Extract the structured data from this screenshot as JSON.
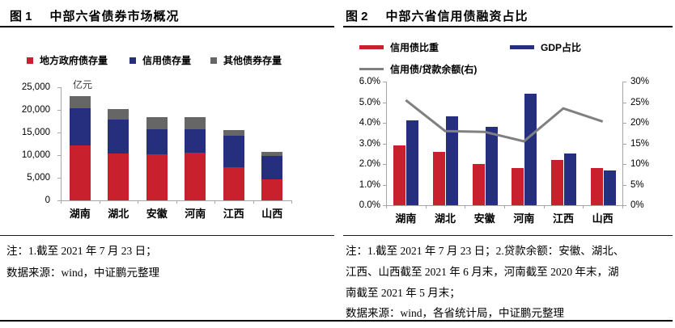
{
  "panels": {
    "left": {
      "fig_no": "图 1",
      "title": "中部六省债券市场概况",
      "unit_label": "亿元",
      "notes": [
        "注：1.截至 2021 年 7 月 23 日；",
        "数据来源：wind，中证鹏元整理"
      ]
    },
    "right": {
      "fig_no": "图 2",
      "title": "中部六省信用债融资占比",
      "notes": [
        "注：1.截至 2021 年 7 月 23 日；2.贷款余额：安徽、湖北、",
        "江西、山西截至 2021 年 6 月末，河南截至 2020 年末，湖",
        "南截至 2021 年 5 月末；",
        "数据来源：wind，各省统计局，中证鹏元整理"
      ]
    }
  },
  "colors": {
    "red": "#C9202E",
    "blue": "#252F7D",
    "gray_bar": "#666666",
    "gray_line": "#808080",
    "axis": "#A6A6A6"
  },
  "chart_data": [
    {
      "type": "bar",
      "stacked": true,
      "title": "中部六省债券市场概况",
      "ylabel": "亿元",
      "categories": [
        "湖南",
        "湖北",
        "安徽",
        "河南",
        "江西",
        "山西"
      ],
      "ylim": [
        0,
        25000
      ],
      "yticks": [
        "25,000",
        "20,000",
        "15,000",
        "10,000",
        "5,000",
        "0"
      ],
      "grid": false,
      "legend_position": "top",
      "series": [
        {
          "name": "地方政府债存量",
          "color": "#C9202E",
          "values": [
            12100,
            10300,
            10100,
            10600,
            7300,
            4600
          ]
        },
        {
          "name": "信用债存量",
          "color": "#252F7D",
          "values": [
            8300,
            7600,
            5600,
            5100,
            6900,
            5300
          ]
        },
        {
          "name": "其他债券存量",
          "color": "#666666",
          "values": [
            2700,
            2300,
            2700,
            2700,
            1300,
            900
          ]
        }
      ]
    },
    {
      "type": "bar+line",
      "title": "中部六省信用债融资占比",
      "categories": [
        "湖南",
        "湖北",
        "安徽",
        "河南",
        "江西",
        "山西"
      ],
      "ylim_left": [
        0,
        6
      ],
      "ylim_right": [
        0,
        30
      ],
      "yticks_left": [
        "6.0%",
        "5.0%",
        "4.0%",
        "3.0%",
        "2.0%",
        "1.0%",
        "0.0%"
      ],
      "yticks_right": [
        "30%",
        "25%",
        "20%",
        "15%",
        "10%",
        "5%",
        "0%"
      ],
      "grid": false,
      "legend_position": "top",
      "series": [
        {
          "name": "信用债比重",
          "type": "bar",
          "axis": "left",
          "color": "#C9202E",
          "values": [
            2.9,
            2.6,
            2.0,
            1.8,
            2.2,
            1.8
          ]
        },
        {
          "name": "GDP占比",
          "type": "bar",
          "axis": "left",
          "color": "#252F7D",
          "values": [
            4.1,
            4.3,
            3.8,
            5.4,
            2.5,
            1.7
          ]
        },
        {
          "name": "信用债/贷款余额(右)",
          "type": "line",
          "axis": "right",
          "color": "#808080",
          "values": [
            25.5,
            18.0,
            17.8,
            15.5,
            23.5,
            20.3
          ]
        }
      ]
    }
  ]
}
